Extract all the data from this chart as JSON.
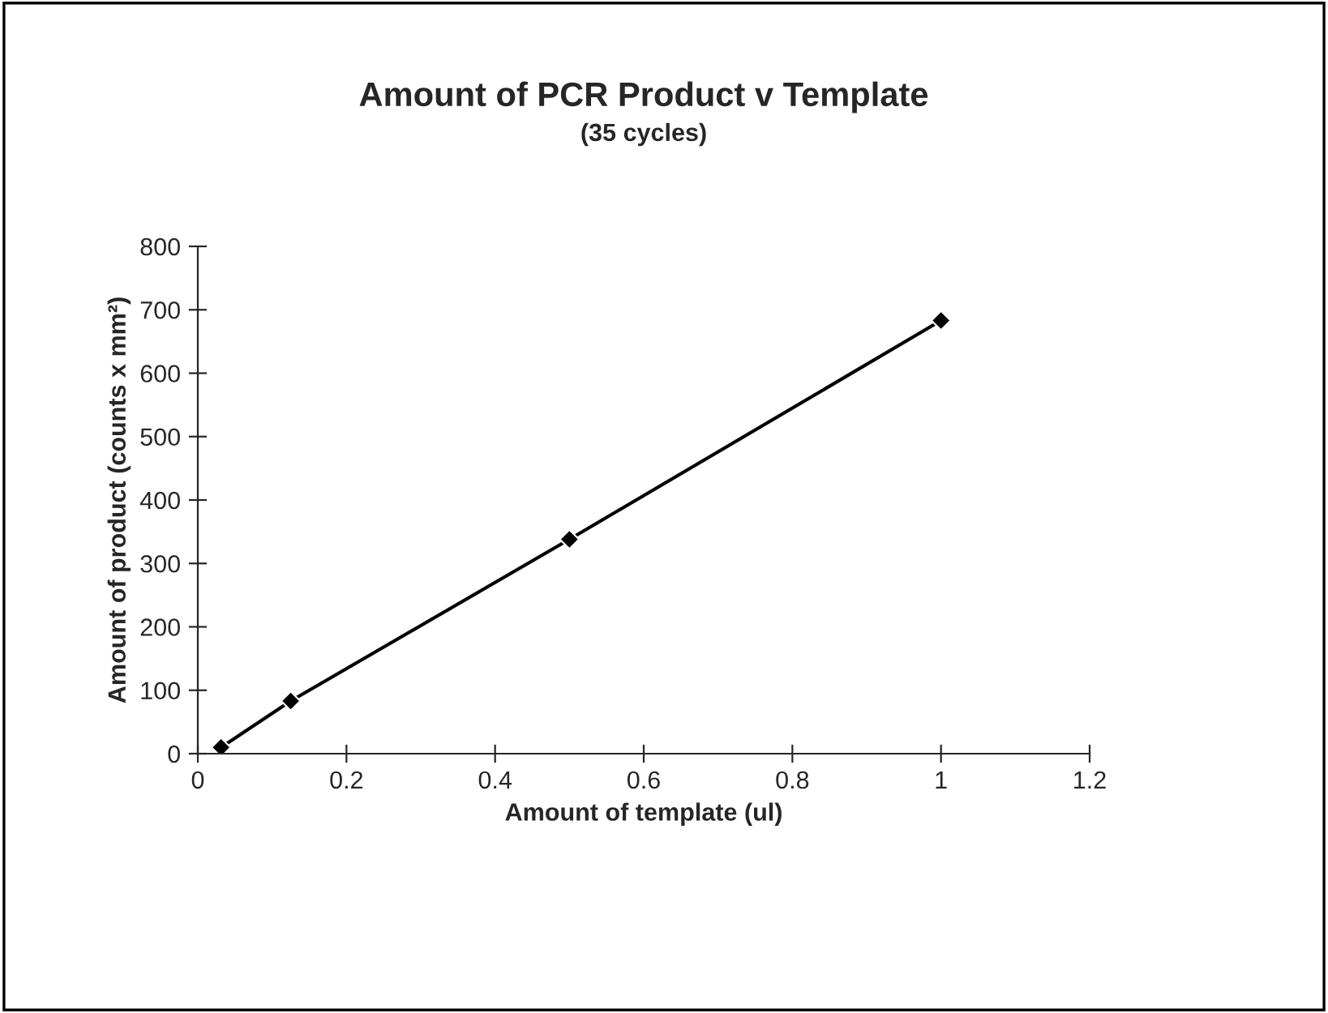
{
  "chart_data": {
    "type": "line",
    "title": "Amount of PCR Product v Template",
    "subtitle": "(35 cycles)",
    "xlabel": "Amount of template (ul)",
    "ylabel": "Amount of product (counts x mm²)",
    "x": [
      0.03125,
      0.125,
      0.5,
      1
    ],
    "series": [
      {
        "color": "#000000",
        "values": [
          10,
          83,
          338,
          683
        ]
      }
    ],
    "xlim": [
      0,
      1.2
    ],
    "xticks": [
      0,
      0.2,
      0.4,
      0.6,
      0.8,
      1,
      1.2
    ],
    "ylim": [
      0,
      800
    ],
    "yticks": [
      0,
      100,
      200,
      300,
      400,
      500,
      600,
      700,
      800
    ],
    "marker": "diamond",
    "line_style": "solid",
    "grid": false,
    "legend": false
  }
}
